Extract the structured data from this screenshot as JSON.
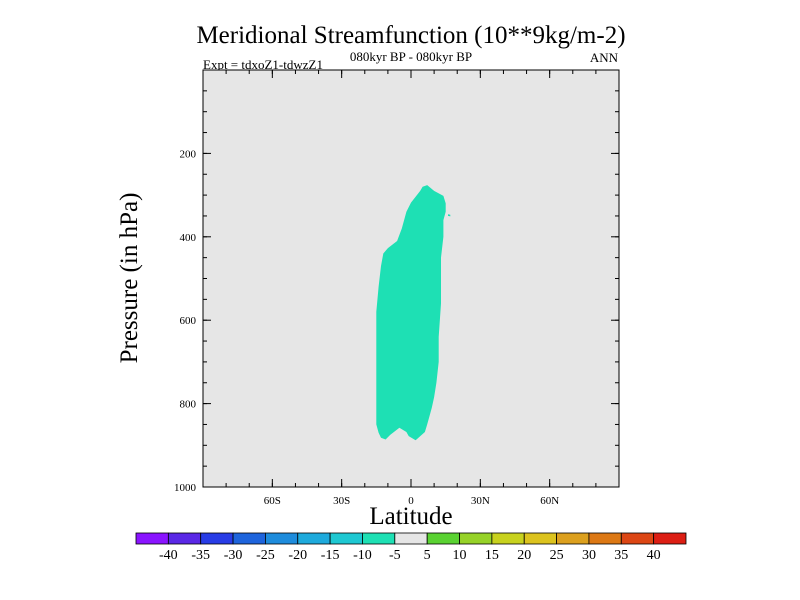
{
  "chart_data": {
    "type": "contour",
    "title": "Meridional Streamfunction (10**9kg/m-2)",
    "subtitle_left": "Expt = tdxoZ1-tdwzZ1",
    "subtitle_center": "080kyr BP - 080kyr BP",
    "subtitle_right": "ANN",
    "xlabel": "Latitude",
    "ylabel": "Pressure (in hPa)",
    "xlim": [
      -90,
      90
    ],
    "ylim": [
      0,
      1000
    ],
    "y_inverted": true,
    "x_ticks": [
      {
        "value": -60,
        "label": "60S"
      },
      {
        "value": -30,
        "label": "30S"
      },
      {
        "value": 0,
        "label": "0"
      },
      {
        "value": 30,
        "label": "30N"
      },
      {
        "value": 60,
        "label": "60N"
      }
    ],
    "y_ticks": [
      {
        "value": 200,
        "label": "200"
      },
      {
        "value": 400,
        "label": "400"
      },
      {
        "value": 600,
        "label": "600"
      },
      {
        "value": 800,
        "label": "800"
      },
      {
        "value": 1000,
        "label": "1000"
      }
    ],
    "background_level_color": "#e6e6e6",
    "filled_regions": [
      {
        "name": "-10 to -5 cell",
        "color": "#1ee0b4",
        "outline": [
          [
            7,
            276
          ],
          [
            10,
            290
          ],
          [
            14,
            302
          ],
          [
            15,
            320
          ],
          [
            15,
            340
          ],
          [
            14,
            360
          ],
          [
            14,
            400
          ],
          [
            13,
            450
          ],
          [
            13,
            500
          ],
          [
            13,
            560
          ],
          [
            12,
            640
          ],
          [
            12,
            700
          ],
          [
            11,
            750
          ],
          [
            10,
            785
          ],
          [
            9,
            810
          ],
          [
            8,
            830
          ],
          [
            7,
            850
          ],
          [
            6,
            868
          ],
          [
            3,
            883
          ],
          [
            2,
            888
          ],
          [
            -1,
            878
          ],
          [
            -2,
            868
          ],
          [
            -5,
            858
          ],
          [
            -9,
            875
          ],
          [
            -11,
            886
          ],
          [
            -13,
            882
          ],
          [
            -14,
            870
          ],
          [
            -15,
            850
          ],
          [
            -15,
            800
          ],
          [
            -15,
            760
          ],
          [
            -15,
            700
          ],
          [
            -15,
            640
          ],
          [
            -15,
            580
          ],
          [
            -14,
            520
          ],
          [
            -13,
            470
          ],
          [
            -12,
            440
          ],
          [
            -10,
            427
          ],
          [
            -6,
            410
          ],
          [
            -4,
            380
          ],
          [
            -2,
            340
          ],
          [
            0,
            318
          ],
          [
            2,
            304
          ],
          [
            4,
            290
          ],
          [
            5,
            280
          ]
        ]
      },
      {
        "name": "small speck",
        "color": "#1ee0b4",
        "outline": [
          [
            16,
            346
          ],
          [
            17,
            347
          ],
          [
            17,
            351
          ],
          [
            16,
            350
          ]
        ]
      }
    ],
    "colorbar": {
      "levels": [
        "-40",
        "-35",
        "-30",
        "-25",
        "-20",
        "-15",
        "-10",
        "-5",
        "5",
        "10",
        "15",
        "20",
        "25",
        "30",
        "35",
        "40"
      ],
      "colors": [
        "#8a14ff",
        "#5a28e6",
        "#283ce6",
        "#1e64dc",
        "#1e8cdc",
        "#1eaadc",
        "#1ec8d2",
        "#1ee0b4",
        "#e6e6e6",
        "#5ad232",
        "#96d228",
        "#c8d21e",
        "#dcc31e",
        "#dca01e",
        "#dc7814",
        "#dc4614",
        "#dc1e14"
      ]
    }
  }
}
